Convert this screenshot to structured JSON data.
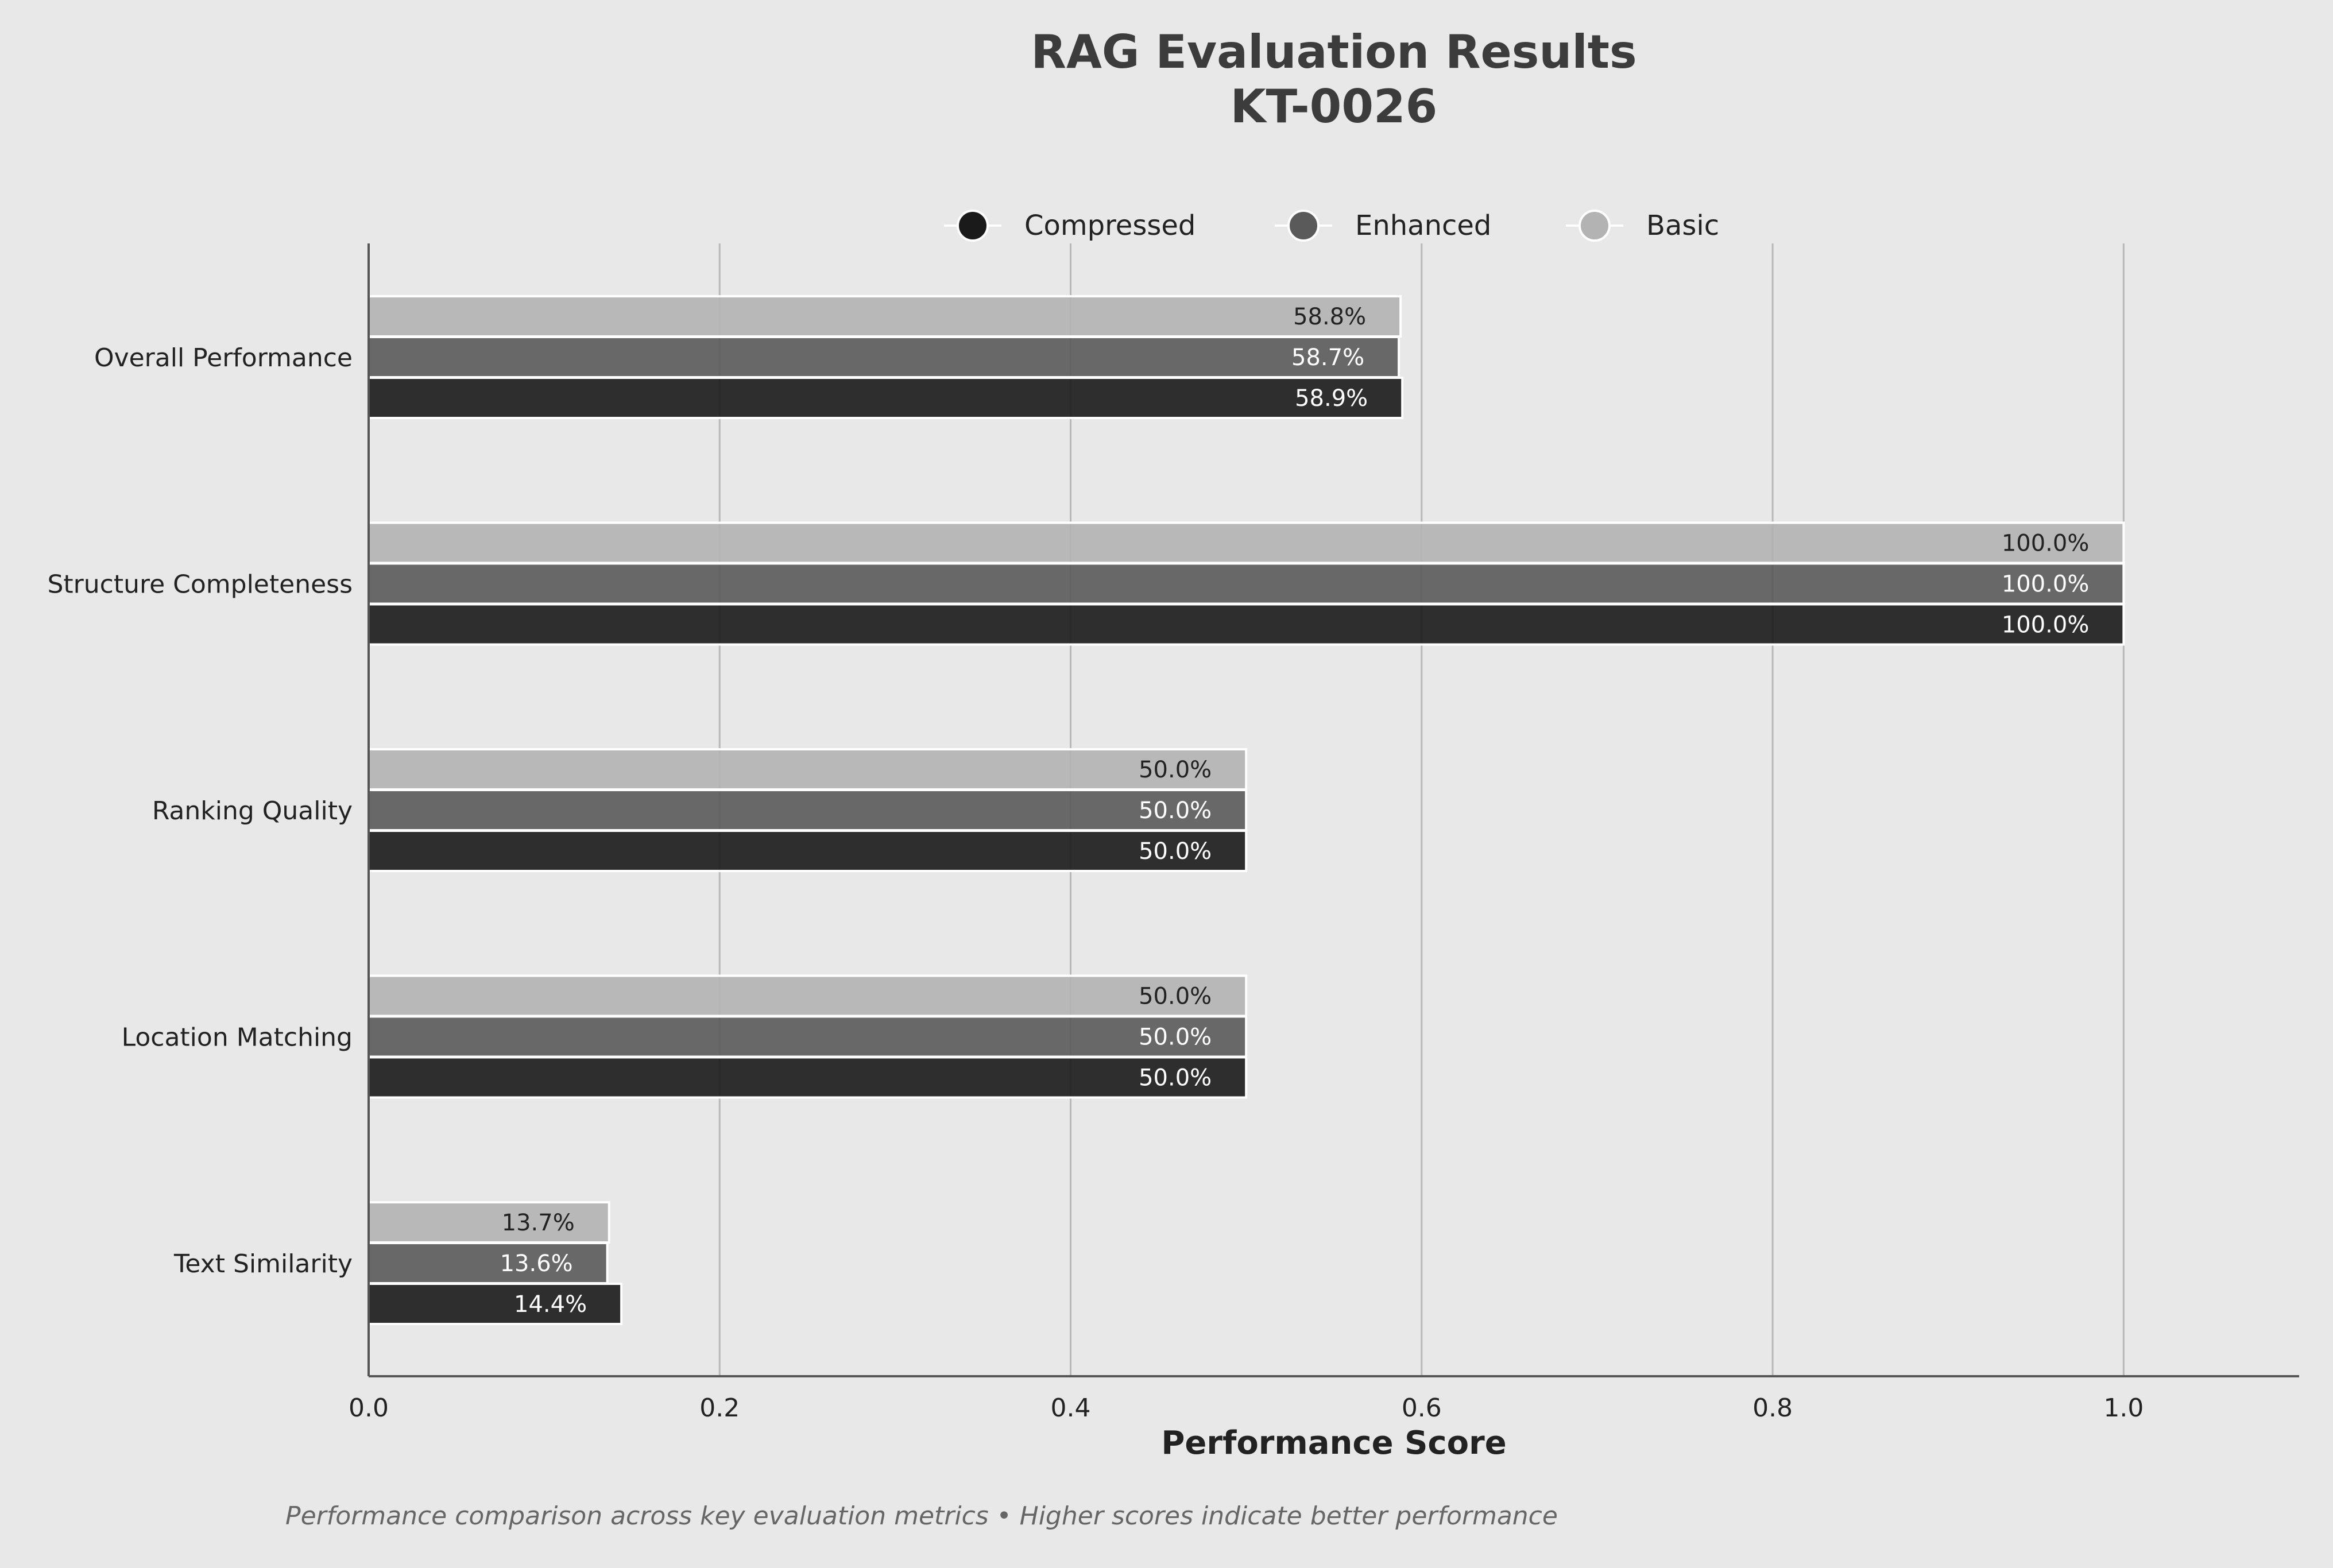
{
  "chart_data": {
    "type": "bar",
    "orientation": "horizontal",
    "title": "RAG Evaluation Results",
    "subtitle": "KT-0026",
    "xlabel": "Performance Score",
    "ylabel": "",
    "xlim": [
      0,
      1.1
    ],
    "x_ticks": [
      "0.0",
      "0.2",
      "0.4",
      "0.6",
      "0.8",
      "1.0"
    ],
    "grid": "vertical",
    "legend_position": "top-center",
    "categories": [
      "Overall Performance",
      "Structure Completeness",
      "Ranking Quality",
      "Location Matching",
      "Text Similarity"
    ],
    "series": [
      {
        "name": "Compressed",
        "color": "#1a1a1a",
        "values": [
          0.589,
          1.0,
          0.5,
          0.5,
          0.144
        ],
        "labels": [
          "58.9%",
          "100.0%",
          "50.0%",
          "50.0%",
          "14.4%"
        ]
      },
      {
        "name": "Enhanced",
        "color": "#5a5a5a",
        "values": [
          0.587,
          1.0,
          0.5,
          0.5,
          0.136
        ],
        "labels": [
          "58.7%",
          "100.0%",
          "50.0%",
          "50.0%",
          "13.6%"
        ]
      },
      {
        "name": "Basic",
        "color": "#b3b3b3",
        "values": [
          0.588,
          1.0,
          0.5,
          0.5,
          0.137
        ],
        "labels": [
          "58.8%",
          "100.0%",
          "50.0%",
          "50.0%",
          "13.7%"
        ]
      }
    ],
    "footnote": "Performance comparison across key evaluation metrics • Higher scores indicate better performance"
  }
}
